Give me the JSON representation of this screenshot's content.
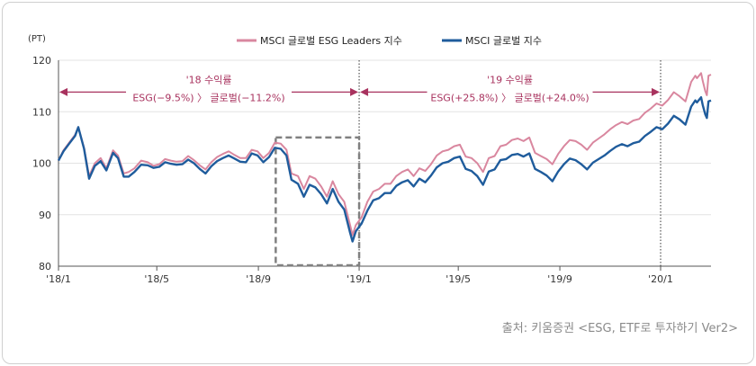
{
  "source": "출처: 키움증권 <ESG, ETF로 투자하기 Ver2>",
  "chart_data": {
    "type": "line",
    "ylabel": "(PT)",
    "ylim": [
      80,
      120
    ],
    "yticks": [
      80,
      90,
      100,
      110,
      120
    ],
    "xlim": [
      "2018-01-02",
      "2020-03-02"
    ],
    "xticks": [
      {
        "date": "2018-01-02",
        "label": "'18/1"
      },
      {
        "date": "2018-05-01",
        "label": "'18/5"
      },
      {
        "date": "2018-09-01",
        "label": "'18/9"
      },
      {
        "date": "2019-01-01",
        "label": "'19/1"
      },
      {
        "date": "2019-05-01",
        "label": "'19/5"
      },
      {
        "date": "2019-09-01",
        "label": "'19/9"
      },
      {
        "date": "2020-01-01",
        "label": "'20/1"
      }
    ],
    "legend_position": "top-center",
    "series": [
      {
        "name": "MSCI 글로벌 ESG Leaders 지수",
        "color": "#d9879f",
        "points": [
          [
            "2018-01-02",
            100.5
          ],
          [
            "2018-01-08",
            102.5
          ],
          [
            "2018-01-15",
            104.0
          ],
          [
            "2018-01-22",
            105.5
          ],
          [
            "2018-01-26",
            107.0
          ],
          [
            "2018-02-02",
            103.0
          ],
          [
            "2018-02-08",
            97.5
          ],
          [
            "2018-02-15",
            100.0
          ],
          [
            "2018-02-22",
            101.0
          ],
          [
            "2018-03-01",
            99.0
          ],
          [
            "2018-03-09",
            102.5
          ],
          [
            "2018-03-15",
            101.5
          ],
          [
            "2018-03-22",
            98.0
          ],
          [
            "2018-03-28",
            98.3
          ],
          [
            "2018-04-04",
            99.0
          ],
          [
            "2018-04-12",
            100.5
          ],
          [
            "2018-04-20",
            100.2
          ],
          [
            "2018-04-27",
            99.5
          ],
          [
            "2018-05-04",
            99.8
          ],
          [
            "2018-05-11",
            100.8
          ],
          [
            "2018-05-18",
            100.5
          ],
          [
            "2018-05-25",
            100.3
          ],
          [
            "2018-06-01",
            100.4
          ],
          [
            "2018-06-08",
            101.4
          ],
          [
            "2018-06-15",
            100.6
          ],
          [
            "2018-06-22",
            99.6
          ],
          [
            "2018-06-29",
            98.8
          ],
          [
            "2018-07-06",
            100.2
          ],
          [
            "2018-07-13",
            101.2
          ],
          [
            "2018-07-20",
            101.8
          ],
          [
            "2018-07-27",
            102.3
          ],
          [
            "2018-08-03",
            101.6
          ],
          [
            "2018-08-10",
            101.0
          ],
          [
            "2018-08-17",
            101.0
          ],
          [
            "2018-08-24",
            102.6
          ],
          [
            "2018-08-31",
            102.3
          ],
          [
            "2018-09-07",
            101.0
          ],
          [
            "2018-09-14",
            102.0
          ],
          [
            "2018-09-21",
            104.0
          ],
          [
            "2018-09-28",
            103.8
          ],
          [
            "2018-10-05",
            102.6
          ],
          [
            "2018-10-11",
            98.0
          ],
          [
            "2018-10-19",
            97.5
          ],
          [
            "2018-10-26",
            95.0
          ],
          [
            "2018-11-02",
            97.5
          ],
          [
            "2018-11-09",
            97.0
          ],
          [
            "2018-11-16",
            95.5
          ],
          [
            "2018-11-23",
            93.5
          ],
          [
            "2018-11-30",
            96.5
          ],
          [
            "2018-12-07",
            94.0
          ],
          [
            "2018-12-14",
            92.5
          ],
          [
            "2018-12-21",
            88.0
          ],
          [
            "2018-12-24",
            86.0
          ],
          [
            "2018-12-28",
            88.0
          ],
          [
            "2019-01-04",
            89.5
          ],
          [
            "2019-01-11",
            92.5
          ],
          [
            "2019-01-18",
            94.5
          ],
          [
            "2019-01-25",
            95.0
          ],
          [
            "2019-02-01",
            96.0
          ],
          [
            "2019-02-08",
            96.0
          ],
          [
            "2019-02-15",
            97.5
          ],
          [
            "2019-02-22",
            98.3
          ],
          [
            "2019-03-01",
            98.8
          ],
          [
            "2019-03-08",
            97.5
          ],
          [
            "2019-03-15",
            99.0
          ],
          [
            "2019-03-22",
            98.5
          ],
          [
            "2019-03-29",
            99.8
          ],
          [
            "2019-04-05",
            101.5
          ],
          [
            "2019-04-12",
            102.3
          ],
          [
            "2019-04-19",
            102.6
          ],
          [
            "2019-04-26",
            103.3
          ],
          [
            "2019-05-03",
            103.6
          ],
          [
            "2019-05-10",
            101.3
          ],
          [
            "2019-05-17",
            101.0
          ],
          [
            "2019-05-24",
            100.0
          ],
          [
            "2019-05-31",
            98.3
          ],
          [
            "2019-06-07",
            101.0
          ],
          [
            "2019-06-14",
            101.4
          ],
          [
            "2019-06-21",
            103.3
          ],
          [
            "2019-06-28",
            103.6
          ],
          [
            "2019-07-05",
            104.5
          ],
          [
            "2019-07-12",
            104.8
          ],
          [
            "2019-07-19",
            104.3
          ],
          [
            "2019-07-26",
            105.0
          ],
          [
            "2019-08-02",
            102.0
          ],
          [
            "2019-08-09",
            101.4
          ],
          [
            "2019-08-16",
            100.8
          ],
          [
            "2019-08-23",
            99.8
          ],
          [
            "2019-08-30",
            101.8
          ],
          [
            "2019-09-06",
            103.3
          ],
          [
            "2019-09-13",
            104.5
          ],
          [
            "2019-09-20",
            104.3
          ],
          [
            "2019-09-27",
            103.6
          ],
          [
            "2019-10-04",
            102.6
          ],
          [
            "2019-10-11",
            104.0
          ],
          [
            "2019-10-18",
            104.8
          ],
          [
            "2019-10-25",
            105.6
          ],
          [
            "2019-11-01",
            106.6
          ],
          [
            "2019-11-08",
            107.4
          ],
          [
            "2019-11-15",
            108.0
          ],
          [
            "2019-11-22",
            107.6
          ],
          [
            "2019-11-29",
            108.3
          ],
          [
            "2019-12-06",
            108.6
          ],
          [
            "2019-12-13",
            109.8
          ],
          [
            "2019-12-20",
            110.6
          ],
          [
            "2019-12-27",
            111.6
          ],
          [
            "2020-01-03",
            111.2
          ],
          [
            "2020-01-10",
            112.3
          ],
          [
            "2020-01-17",
            113.8
          ],
          [
            "2020-01-24",
            113.0
          ],
          [
            "2020-01-31",
            112.0
          ],
          [
            "2020-02-07",
            115.8
          ],
          [
            "2020-02-12",
            117.0
          ],
          [
            "2020-02-14",
            116.5
          ],
          [
            "2020-02-19",
            117.5
          ],
          [
            "2020-02-21",
            116.0
          ],
          [
            "2020-02-24",
            114.0
          ],
          [
            "2020-02-26",
            113.2
          ],
          [
            "2020-02-28",
            117.0
          ],
          [
            "2020-03-02",
            117.2
          ]
        ]
      },
      {
        "name": "MSCI 글로벌 지수",
        "color": "#1f5c9c",
        "points": [
          [
            "2018-01-02",
            100.5
          ],
          [
            "2018-01-08",
            102.3
          ],
          [
            "2018-01-15",
            103.8
          ],
          [
            "2018-01-22",
            105.3
          ],
          [
            "2018-01-26",
            107.0
          ],
          [
            "2018-02-02",
            102.8
          ],
          [
            "2018-02-08",
            97.0
          ],
          [
            "2018-02-15",
            99.5
          ],
          [
            "2018-02-22",
            100.4
          ],
          [
            "2018-03-01",
            98.6
          ],
          [
            "2018-03-09",
            102.0
          ],
          [
            "2018-03-15",
            101.0
          ],
          [
            "2018-03-22",
            97.4
          ],
          [
            "2018-03-28",
            97.4
          ],
          [
            "2018-04-04",
            98.3
          ],
          [
            "2018-04-12",
            99.7
          ],
          [
            "2018-04-20",
            99.6
          ],
          [
            "2018-04-27",
            99.1
          ],
          [
            "2018-05-04",
            99.3
          ],
          [
            "2018-05-11",
            100.2
          ],
          [
            "2018-05-18",
            99.9
          ],
          [
            "2018-05-25",
            99.7
          ],
          [
            "2018-06-01",
            99.8
          ],
          [
            "2018-06-08",
            100.7
          ],
          [
            "2018-06-15",
            100.0
          ],
          [
            "2018-06-22",
            98.9
          ],
          [
            "2018-06-29",
            98.0
          ],
          [
            "2018-07-06",
            99.4
          ],
          [
            "2018-07-13",
            100.4
          ],
          [
            "2018-07-20",
            101.0
          ],
          [
            "2018-07-27",
            101.5
          ],
          [
            "2018-08-03",
            100.9
          ],
          [
            "2018-08-10",
            100.3
          ],
          [
            "2018-08-17",
            100.2
          ],
          [
            "2018-08-24",
            101.9
          ],
          [
            "2018-08-31",
            101.5
          ],
          [
            "2018-09-07",
            100.2
          ],
          [
            "2018-09-14",
            101.2
          ],
          [
            "2018-09-21",
            103.0
          ],
          [
            "2018-09-28",
            102.8
          ],
          [
            "2018-10-05",
            101.5
          ],
          [
            "2018-10-11",
            96.8
          ],
          [
            "2018-10-19",
            96.0
          ],
          [
            "2018-10-26",
            93.5
          ],
          [
            "2018-11-02",
            95.8
          ],
          [
            "2018-11-09",
            95.3
          ],
          [
            "2018-11-16",
            94.0
          ],
          [
            "2018-11-23",
            92.2
          ],
          [
            "2018-11-30",
            95.0
          ],
          [
            "2018-12-07",
            92.5
          ],
          [
            "2018-12-14",
            91.0
          ],
          [
            "2018-12-21",
            86.5
          ],
          [
            "2018-12-24",
            84.8
          ],
          [
            "2018-12-28",
            86.8
          ],
          [
            "2019-01-04",
            88.3
          ],
          [
            "2019-01-11",
            90.8
          ],
          [
            "2019-01-18",
            92.8
          ],
          [
            "2019-01-25",
            93.2
          ],
          [
            "2019-02-01",
            94.2
          ],
          [
            "2019-02-08",
            94.2
          ],
          [
            "2019-02-15",
            95.6
          ],
          [
            "2019-02-22",
            96.3
          ],
          [
            "2019-03-01",
            96.7
          ],
          [
            "2019-03-08",
            95.5
          ],
          [
            "2019-03-15",
            97.0
          ],
          [
            "2019-03-22",
            96.3
          ],
          [
            "2019-03-29",
            97.6
          ],
          [
            "2019-04-05",
            99.2
          ],
          [
            "2019-04-12",
            100.0
          ],
          [
            "2019-04-19",
            100.3
          ],
          [
            "2019-04-26",
            101.0
          ],
          [
            "2019-05-03",
            101.3
          ],
          [
            "2019-05-10",
            98.9
          ],
          [
            "2019-05-17",
            98.5
          ],
          [
            "2019-05-24",
            97.5
          ],
          [
            "2019-05-31",
            95.8
          ],
          [
            "2019-06-07",
            98.4
          ],
          [
            "2019-06-14",
            98.8
          ],
          [
            "2019-06-21",
            100.6
          ],
          [
            "2019-06-28",
            100.8
          ],
          [
            "2019-07-05",
            101.6
          ],
          [
            "2019-07-12",
            101.8
          ],
          [
            "2019-07-19",
            101.3
          ],
          [
            "2019-07-26",
            101.9
          ],
          [
            "2019-08-02",
            98.9
          ],
          [
            "2019-08-09",
            98.3
          ],
          [
            "2019-08-16",
            97.6
          ],
          [
            "2019-08-23",
            96.5
          ],
          [
            "2019-08-30",
            98.4
          ],
          [
            "2019-09-06",
            99.8
          ],
          [
            "2019-09-13",
            100.9
          ],
          [
            "2019-09-20",
            100.6
          ],
          [
            "2019-09-27",
            99.8
          ],
          [
            "2019-10-04",
            98.8
          ],
          [
            "2019-10-11",
            100.1
          ],
          [
            "2019-10-18",
            100.8
          ],
          [
            "2019-10-25",
            101.5
          ],
          [
            "2019-11-01",
            102.4
          ],
          [
            "2019-11-08",
            103.2
          ],
          [
            "2019-11-15",
            103.7
          ],
          [
            "2019-11-22",
            103.3
          ],
          [
            "2019-11-29",
            103.9
          ],
          [
            "2019-12-06",
            104.2
          ],
          [
            "2019-12-13",
            105.3
          ],
          [
            "2019-12-20",
            106.1
          ],
          [
            "2019-12-27",
            107.0
          ],
          [
            "2020-01-03",
            106.6
          ],
          [
            "2020-01-10",
            107.7
          ],
          [
            "2020-01-17",
            109.2
          ],
          [
            "2020-01-24",
            108.5
          ],
          [
            "2020-01-31",
            107.5
          ],
          [
            "2020-02-07",
            111.0
          ],
          [
            "2020-02-12",
            112.2
          ],
          [
            "2020-02-14",
            111.8
          ],
          [
            "2020-02-19",
            112.8
          ],
          [
            "2020-02-21",
            111.3
          ],
          [
            "2020-02-24",
            109.5
          ],
          [
            "2020-02-26",
            108.8
          ],
          [
            "2020-02-28",
            112.0
          ],
          [
            "2020-03-02",
            112.2
          ]
        ]
      }
    ],
    "annotations": [
      {
        "id": "y2018",
        "line1": "'18 수익률",
        "line2": "ESG(−9.5%) 〉 글로벌(−11.2%)",
        "from": "2018-01-02",
        "to": "2019-01-01",
        "y": 114,
        "color": "#a8325e"
      },
      {
        "id": "y2019",
        "line1": "'19 수익률",
        "line2": "ESG(+25.8%) 〉 글로벌(+24.0%)",
        "from": "2019-01-01",
        "to": "2020-01-01",
        "y": 114,
        "color": "#a8325e"
      }
    ],
    "vlines": [
      "2019-01-01",
      "2020-01-01"
    ],
    "highlight_box": {
      "from": "2018-09-22",
      "to": "2019-01-01",
      "ylim": [
        80,
        105
      ]
    }
  }
}
